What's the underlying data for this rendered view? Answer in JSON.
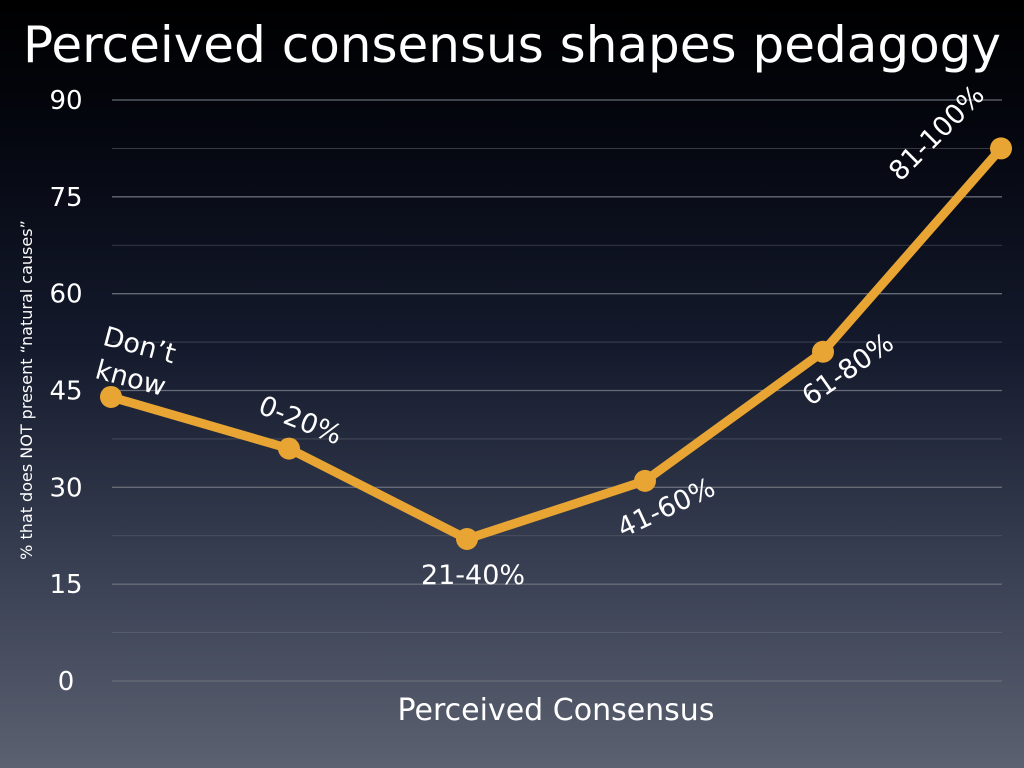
{
  "title": "Perceived consensus shapes pedagogy",
  "chart_data": {
    "type": "line",
    "categories": [
      "Don’t know",
      "0-20%",
      "21-40%",
      "41-60%",
      "61-80%",
      "81-100%"
    ],
    "values": [
      44,
      36,
      22,
      31,
      51,
      82.5
    ],
    "xlabel": "Perceived Consensus",
    "ylabel": "% that does NOT present “natural causes”",
    "ylim": [
      0,
      90
    ],
    "yticks": [
      0,
      15,
      30,
      45,
      60,
      75,
      90
    ],
    "grid": true,
    "legend": "none",
    "line_color": "#e8a534",
    "grid_color": "#6a6f7a"
  }
}
